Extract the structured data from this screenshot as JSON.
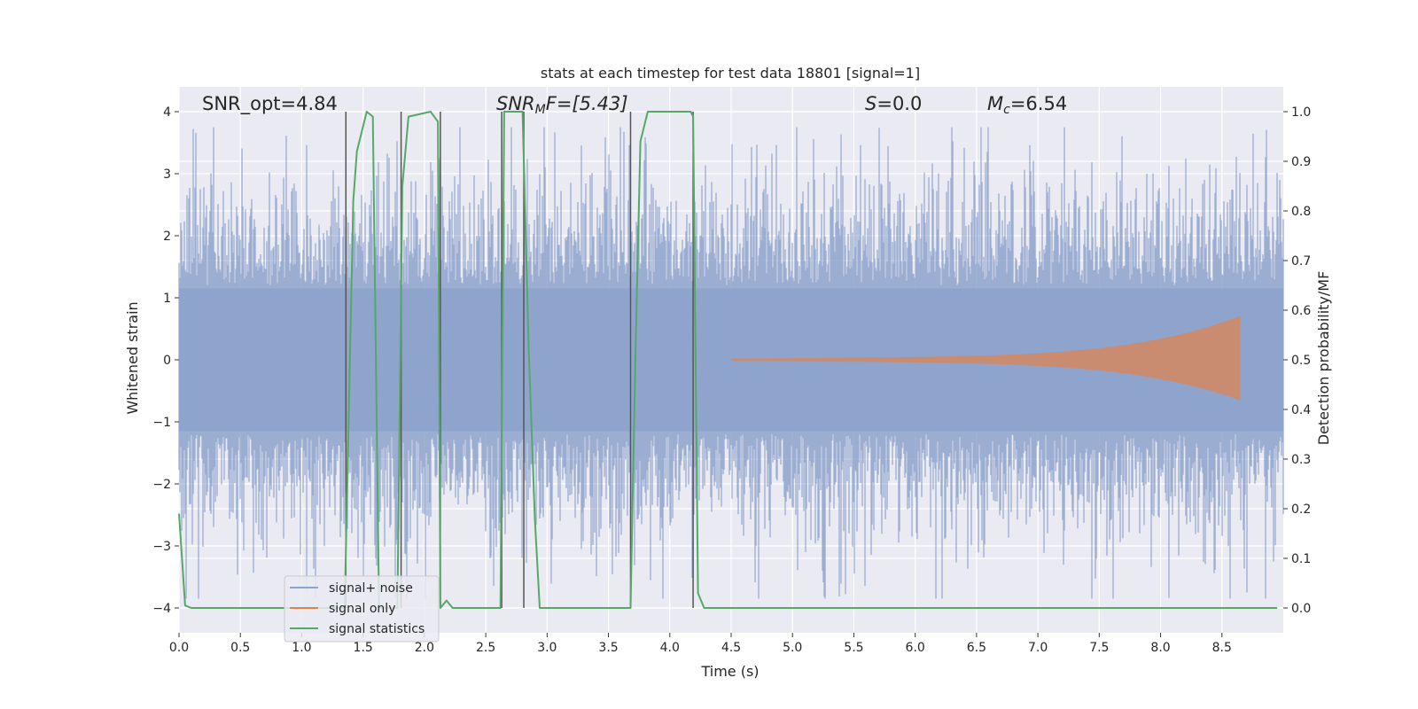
{
  "chart_data": {
    "type": "line",
    "title": "stats at each timestep for test data 18801 [signal=1]",
    "xlabel": "Time (s)",
    "ylabel": "Whitened strain",
    "y2label": "Detection probability/MF",
    "xlim": [
      0.0,
      9.0
    ],
    "ylim": [
      -4.4,
      4.4
    ],
    "y2lim": [
      -0.05,
      1.05
    ],
    "x_ticks": [
      0.0,
      0.5,
      1.0,
      1.5,
      2.0,
      2.5,
      3.0,
      3.5,
      4.0,
      4.5,
      5.0,
      5.5,
      6.0,
      6.5,
      7.0,
      7.5,
      8.0,
      8.5
    ],
    "x_tick_labels": [
      "0.0",
      "0.5",
      "1.0",
      "1.5",
      "2.0",
      "2.5",
      "3.0",
      "3.5",
      "4.0",
      "4.5",
      "5.0",
      "5.5",
      "6.0",
      "6.5",
      "7.0",
      "7.5",
      "8.0",
      "8.5"
    ],
    "y_ticks": [
      4,
      3,
      2,
      1,
      0,
      -1,
      -2,
      -3,
      -4
    ],
    "y_tick_labels": [
      "4",
      "3",
      "2",
      "1",
      "0",
      "−1",
      "−2",
      "−3",
      "−4"
    ],
    "y2_ticks": [
      1.0,
      0.9,
      0.8,
      0.7,
      0.6,
      0.5,
      0.4,
      0.3,
      0.2,
      0.1,
      0.0
    ],
    "y2_tick_labels": [
      "1.0",
      "0.9",
      "0.8",
      "0.7",
      "0.6",
      "0.5",
      "0.4",
      "0.3",
      "0.2",
      "0.1",
      "0.0"
    ],
    "grid": true,
    "legend_position": "lower-left",
    "annotations": {
      "snr_opt": "SNR_opt=4.84",
      "snr_mf_sym": "SNR",
      "snr_mf_sub": "M",
      "snr_mf_rest": "F=[5.43]",
      "s_sym": "S",
      "s_rest": "=0.0",
      "mc_sym": "M",
      "mc_sub": "c",
      "mc_rest": "=6.54"
    },
    "series": [
      {
        "name": "signal+ noise",
        "color": "#8da3cc",
        "note_amplitude_envelope": "noise roughly within ±2.5, peaks to ±3.7"
      },
      {
        "name": "signal only",
        "color": "#dd8452",
        "chirp": {
          "t_start": 4.5,
          "t_end": 8.65,
          "amp_start": 0.02,
          "amp_end": 0.65
        }
      },
      {
        "name": "signal statistics",
        "color": "#55a868",
        "axis": "right",
        "x": [
          0.0,
          0.05,
          0.1,
          0.15,
          1.35,
          1.42,
          1.45,
          1.53,
          1.58,
          1.63,
          1.78,
          1.82,
          1.87,
          2.05,
          2.11,
          2.13,
          2.18,
          2.23,
          2.62,
          2.65,
          2.7,
          2.8,
          2.85,
          2.9,
          2.94,
          3.68,
          3.72,
          3.76,
          3.82,
          4.17,
          4.19,
          4.23,
          4.28,
          8.95
        ],
        "y": [
          0.19,
          0.005,
          0.0,
          0.0,
          0.0,
          0.82,
          0.92,
          1.0,
          0.99,
          0.0,
          0.0,
          0.85,
          0.99,
          1.0,
          0.98,
          0.0,
          0.015,
          0.0,
          0.0,
          1.0,
          1.0,
          1.0,
          0.52,
          0.18,
          0.0,
          0.0,
          0.51,
          0.94,
          1.0,
          1.0,
          0.99,
          0.03,
          0.0,
          0.0
        ]
      }
    ],
    "vlines": {
      "color": "#555555",
      "x": [
        1.36,
        1.81,
        2.13,
        2.63,
        2.81,
        3.68,
        4.19
      ]
    }
  }
}
